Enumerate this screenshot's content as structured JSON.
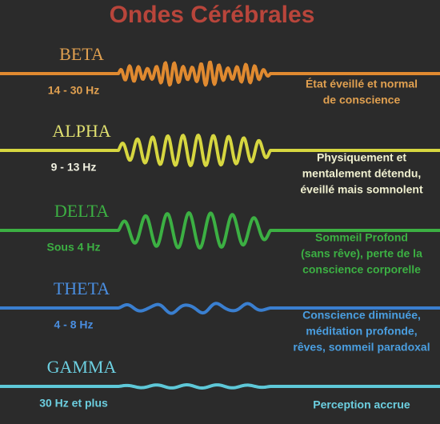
{
  "title": "Ondes Cérébrales",
  "waves": [
    {
      "name": "BETA",
      "frequency": "14 - 30 Hz",
      "description": [
        "État éveillé et normal",
        "de conscience"
      ]
    },
    {
      "name": "ALPHA",
      "frequency": "9 - 13 Hz",
      "description": [
        "Physiquement et",
        "mentalement détendu,",
        "éveillé mais somnolent"
      ]
    },
    {
      "name": "DELTA",
      "frequency": "Sous 4 Hz",
      "description": [
        "Sommeil Profond",
        "(sans rêve), perte de la",
        "conscience corporelle"
      ]
    },
    {
      "name": "THETA",
      "frequency": "4 - 8 Hz",
      "description": [
        "Conscience diminuée,",
        "méditation profonde,",
        "rêves, sommeil paradoxal"
      ]
    },
    {
      "name": "GAMMA",
      "frequency": "30 Hz et plus",
      "description": [
        "Perception accrue"
      ]
    }
  ]
}
